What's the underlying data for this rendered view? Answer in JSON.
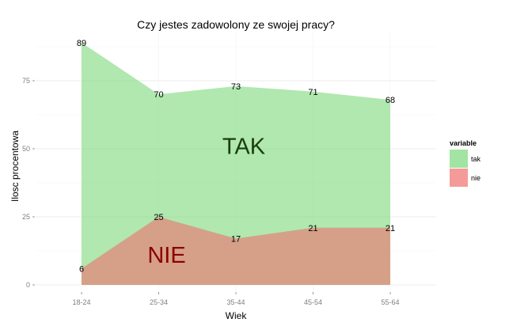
{
  "chart_data": {
    "type": "area",
    "title": "Czy jestes zadowolony ze swojej pracy?",
    "xlabel": "Wiek",
    "ylabel": "Ilosc procentowa",
    "categories": [
      "18-24",
      "25-34",
      "35-44",
      "45-54",
      "55-64"
    ],
    "yticks": [
      0,
      25,
      50,
      75
    ],
    "ylim": [
      0,
      90
    ],
    "grid": true,
    "legend_title": "variable",
    "legend_position": "right",
    "series": [
      {
        "name": "tak",
        "values": [
          89,
          70,
          73,
          71,
          68
        ],
        "color": "#7bd87a"
      },
      {
        "name": "nie",
        "values": [
          6,
          25,
          17,
          21,
          21
        ],
        "color": "#f0706e"
      }
    ],
    "annotations": [
      {
        "text": "TAK",
        "color": "#1b3d10",
        "category": "35-44",
        "y": 51
      },
      {
        "text": "NIE",
        "color": "#8b0000",
        "category": "25-34",
        "y": 11
      }
    ]
  }
}
